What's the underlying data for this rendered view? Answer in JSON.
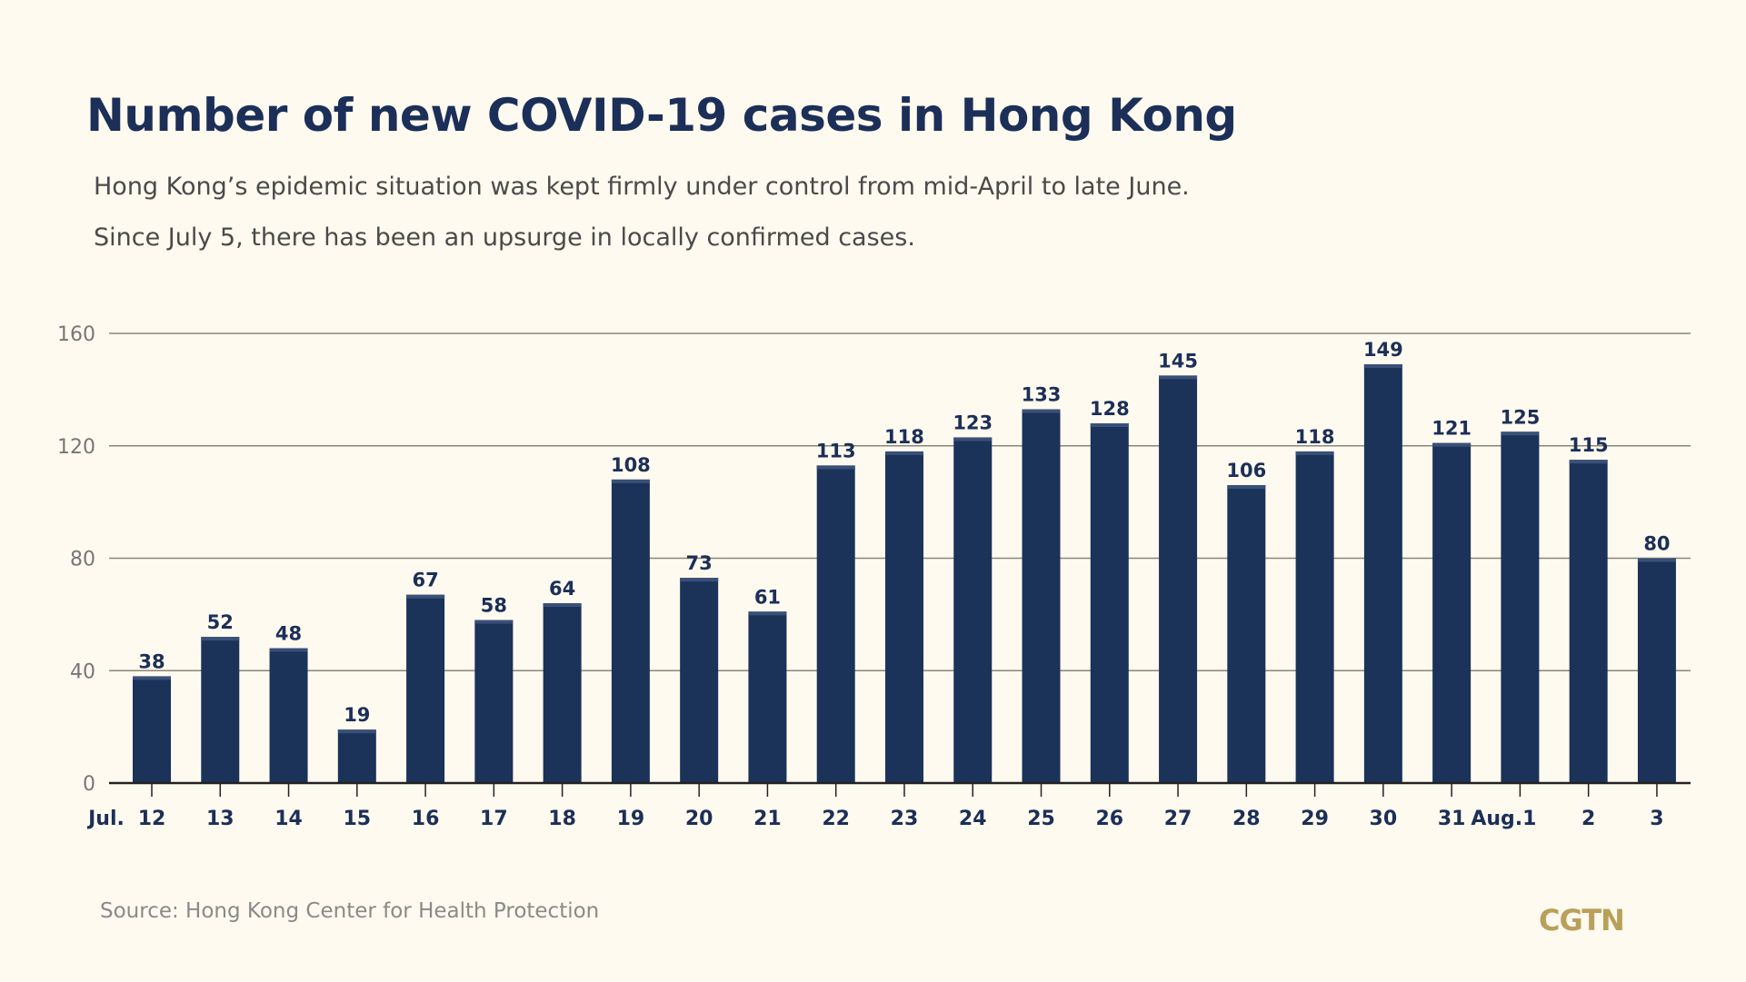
{
  "chart_data": {
    "type": "bar",
    "title": "Number of new COVID-19 cases in Hong Kong",
    "subtitle": [
      "Hong Kong’s epidemic situation was kept firmly under control from mid-April to late June.",
      "Since July 5, there has been an upsurge in locally confirmed cases."
    ],
    "xlabel": "",
    "ylabel": "",
    "x_prefix_label": "Jul.",
    "categories": [
      "12",
      "13",
      "14",
      "15",
      "16",
      "17",
      "18",
      "19",
      "20",
      "21",
      "22",
      "23",
      "24",
      "25",
      "26",
      "27",
      "28",
      "29",
      "30",
      "31",
      "Aug.1",
      "2",
      "3"
    ],
    "values": [
      38,
      52,
      48,
      19,
      67,
      58,
      64,
      108,
      73,
      61,
      113,
      118,
      123,
      133,
      128,
      145,
      106,
      118,
      149,
      121,
      125,
      115,
      80
    ],
    "ylim": [
      0,
      160
    ],
    "yticks": [
      0,
      40,
      80,
      120,
      160
    ],
    "grid": true,
    "colors": {
      "bar": "#1b3259",
      "background": "#fffaef",
      "logo": "#b9a05a"
    },
    "source": "Source: Hong Kong Center for Health Protection",
    "logo": "CGTN"
  }
}
